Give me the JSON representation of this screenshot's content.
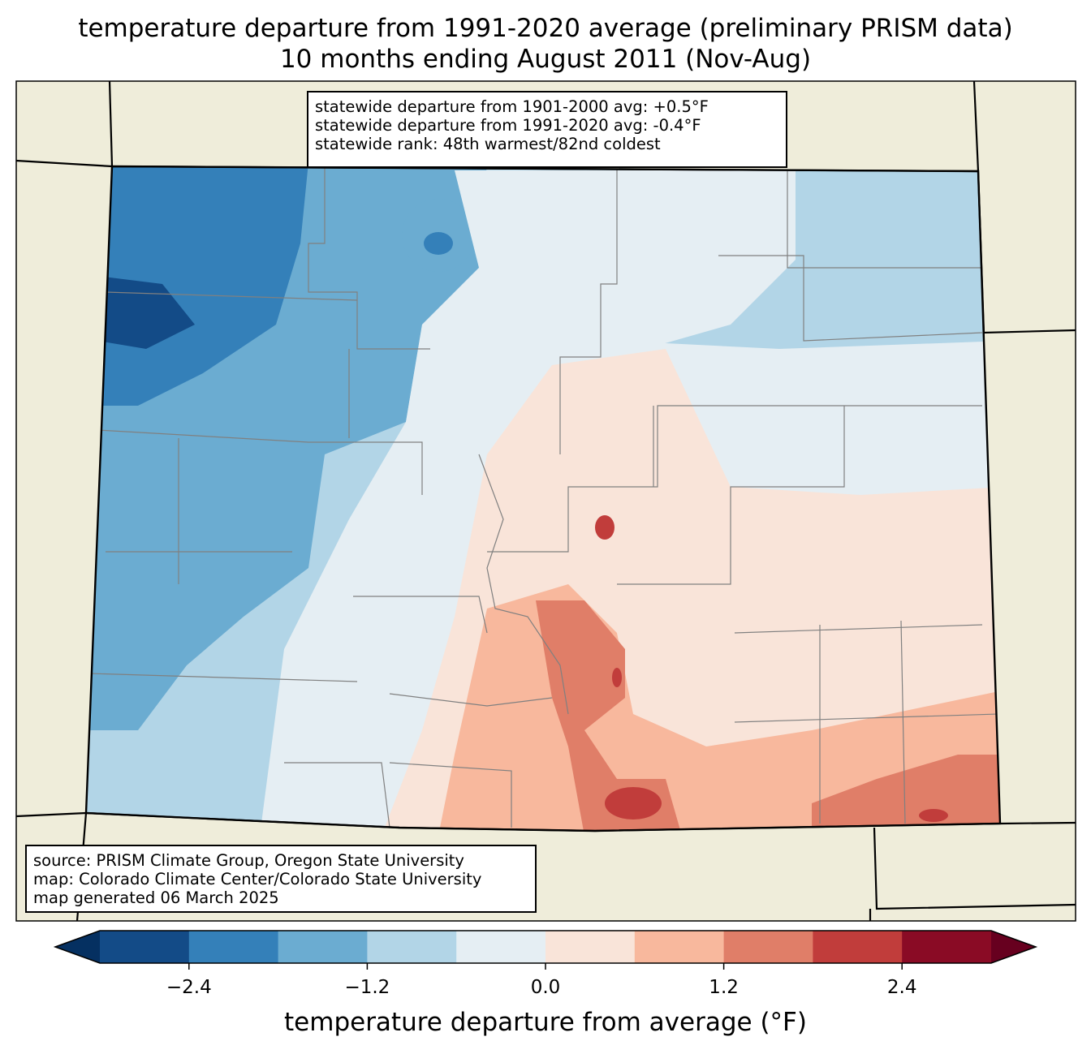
{
  "title_line1": "temperature departure from 1991-2020 average (preliminary PRISM data)",
  "title_line2": "10 months ending August 2011 (Nov-Aug)",
  "stats": {
    "line1": "statewide departure from 1901-2000 avg: +0.5°F",
    "line2": "statewide departure from 1991-2020 avg: -0.4°F",
    "line3": "statewide rank: 48th warmest/82nd coldest"
  },
  "source": {
    "line1": "source: PRISM Climate Group, Oregon State University",
    "line2": "map: Colorado Climate Center/Colorado State University",
    "line3": "map generated 06 March 2025"
  },
  "colorbar": {
    "label": "temperature departure from average (°F)",
    "ticks": [
      "−2.4",
      "−1.2",
      "0.0",
      "1.2",
      "2.4"
    ],
    "tick_values": [
      -2.4,
      -1.2,
      0.0,
      1.2,
      2.4
    ],
    "bounds": [
      -3.0,
      3.0
    ],
    "step": 0.6,
    "colors": [
      "#134b87",
      "#3480b9",
      "#6bacd1",
      "#b2d5e7",
      "#e5eef3",
      "#f9e4d9",
      "#f8b89d",
      "#e07e68",
      "#c13d3b",
      "#8a0b25"
    ],
    "under_color": "#053061",
    "over_color": "#67001f"
  },
  "land_color": "#efedda"
}
